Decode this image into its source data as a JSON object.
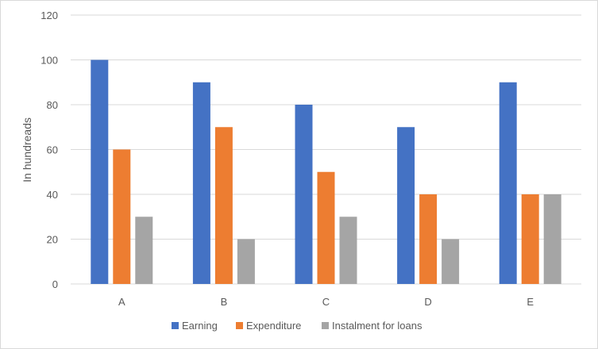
{
  "chart_data": {
    "type": "bar",
    "title": "",
    "xlabel": "",
    "ylabel": "In hundreads",
    "categories": [
      "A",
      "B",
      "C",
      "D",
      "E"
    ],
    "ylim": [
      0,
      120
    ],
    "yticks": [
      0,
      20,
      40,
      60,
      80,
      100,
      120
    ],
    "grid": true,
    "legend": "bottom",
    "series": [
      {
        "name": "Earning",
        "color": "#4472C4",
        "values": [
          100,
          90,
          80,
          70,
          90
        ]
      },
      {
        "name": "Expenditure",
        "color": "#ED7D31",
        "values": [
          60,
          70,
          50,
          40,
          40
        ]
      },
      {
        "name": "Instalment for loans",
        "color": "#A5A5A5",
        "values": [
          30,
          20,
          30,
          20,
          40
        ]
      }
    ]
  }
}
